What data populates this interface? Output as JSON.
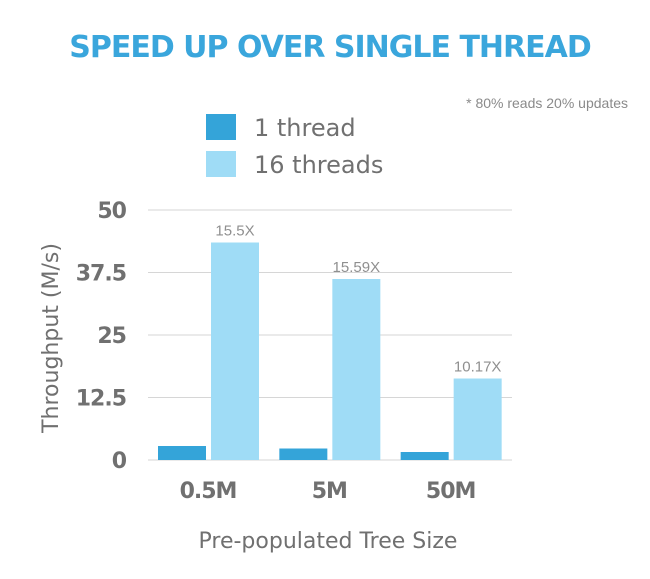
{
  "colors": {
    "title": "#3aa6dc",
    "series_1": "#34a4d9",
    "series_2": "#9fdcf6",
    "text": "#707070",
    "grid": "#d6d6d6",
    "note": "#8a8a8a"
  },
  "chart_data": {
    "type": "bar",
    "title": "SPEED UP OVER SINGLE THREAD",
    "note": "* 80% reads 20% updates",
    "xlabel": "Pre-populated Tree Size",
    "ylabel": "Throughput (M/s)",
    "categories": [
      "0.5M",
      "5M",
      "50M"
    ],
    "series": [
      {
        "name": "1 thread",
        "values": [
          2.8,
          2.3,
          1.6
        ]
      },
      {
        "name": "16 threads",
        "values": [
          43.5,
          36.2,
          16.3
        ]
      }
    ],
    "data_labels": [
      "15.5X",
      "15.59X",
      "10.17X"
    ],
    "ylim": [
      0,
      50
    ],
    "yticks": [
      0,
      12.5,
      25,
      37.5,
      50
    ],
    "ytick_labels": [
      "0",
      "12.5",
      "25",
      "37.5",
      "50"
    ],
    "grid": true,
    "legend_position": "top"
  }
}
